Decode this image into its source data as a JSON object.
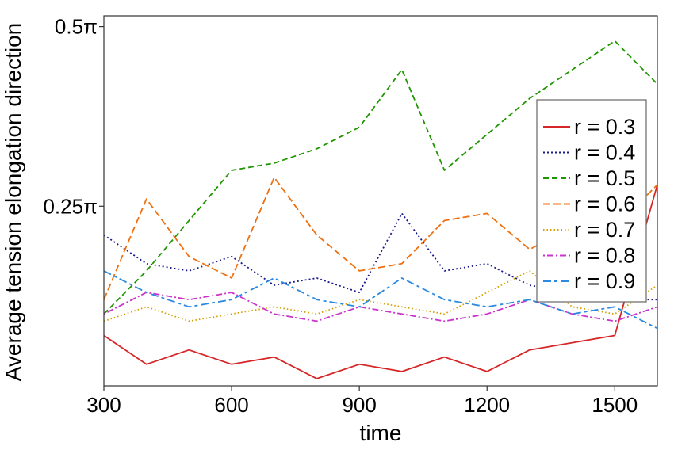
{
  "chart_data": {
    "type": "line",
    "title": "",
    "xlabel": "time",
    "ylabel": "Average tension elongation direction",
    "xlim": [
      300,
      1600
    ],
    "ylim_pi_fraction": [
      0.0,
      0.515
    ],
    "x_ticks": [
      {
        "value": 300,
        "label": "300"
      },
      {
        "value": 600,
        "label": "600"
      },
      {
        "value": 900,
        "label": "900"
      },
      {
        "value": 1200,
        "label": "1200"
      },
      {
        "value": 1500,
        "label": "1500"
      }
    ],
    "y_ticks": [
      {
        "value": 0.25,
        "label": "0.25π"
      },
      {
        "value": 0.5,
        "label": "0.5π"
      }
    ],
    "y_unit": "π",
    "grid": false,
    "legend_position": "right",
    "x": [
      300,
      400,
      500,
      600,
      700,
      800,
      900,
      1000,
      1100,
      1200,
      1300,
      1400,
      1500,
      1600
    ],
    "series": [
      {
        "name": "r = 0.3",
        "color": "#d62728",
        "dash": "solid",
        "values": [
          0.07,
          0.03,
          0.05,
          0.03,
          0.04,
          0.01,
          0.03,
          0.02,
          0.04,
          0.02,
          0.05,
          0.06,
          0.07,
          0.28
        ]
      },
      {
        "name": "r = 0.4",
        "color": "#1a1a8c",
        "dash": "dot",
        "values": [
          0.21,
          0.17,
          0.16,
          0.18,
          0.14,
          0.15,
          0.13,
          0.24,
          0.16,
          0.17,
          0.14,
          0.13,
          0.12,
          0.12
        ]
      },
      {
        "name": "r = 0.5",
        "color": "#1e9600",
        "dash": "dash",
        "values": [
          0.1,
          0.16,
          0.23,
          0.3,
          0.31,
          0.33,
          0.36,
          0.44,
          0.3,
          0.35,
          0.4,
          0.44,
          0.48,
          0.42
        ]
      },
      {
        "name": "r = 0.6",
        "color": "#f07010",
        "dash": "longdash",
        "values": [
          0.12,
          0.26,
          0.18,
          0.15,
          0.29,
          0.21,
          0.16,
          0.17,
          0.23,
          0.24,
          0.19,
          0.22,
          0.22,
          0.28
        ]
      },
      {
        "name": "r = 0.7",
        "color": "#d4a000",
        "dash": "finedot",
        "values": [
          0.09,
          0.11,
          0.09,
          0.1,
          0.11,
          0.1,
          0.12,
          0.11,
          0.1,
          0.13,
          0.16,
          0.11,
          0.1,
          0.14
        ]
      },
      {
        "name": "r = 0.8",
        "color": "#cc33cc",
        "dash": "dotdash",
        "values": [
          0.1,
          0.13,
          0.12,
          0.13,
          0.1,
          0.09,
          0.11,
          0.1,
          0.09,
          0.1,
          0.12,
          0.1,
          0.09,
          0.11
        ]
      },
      {
        "name": "r = 0.9",
        "color": "#2b8ae0",
        "dash": "twodash",
        "values": [
          0.16,
          0.13,
          0.11,
          0.12,
          0.15,
          0.12,
          0.11,
          0.15,
          0.12,
          0.11,
          0.12,
          0.1,
          0.11,
          0.08
        ]
      }
    ]
  }
}
